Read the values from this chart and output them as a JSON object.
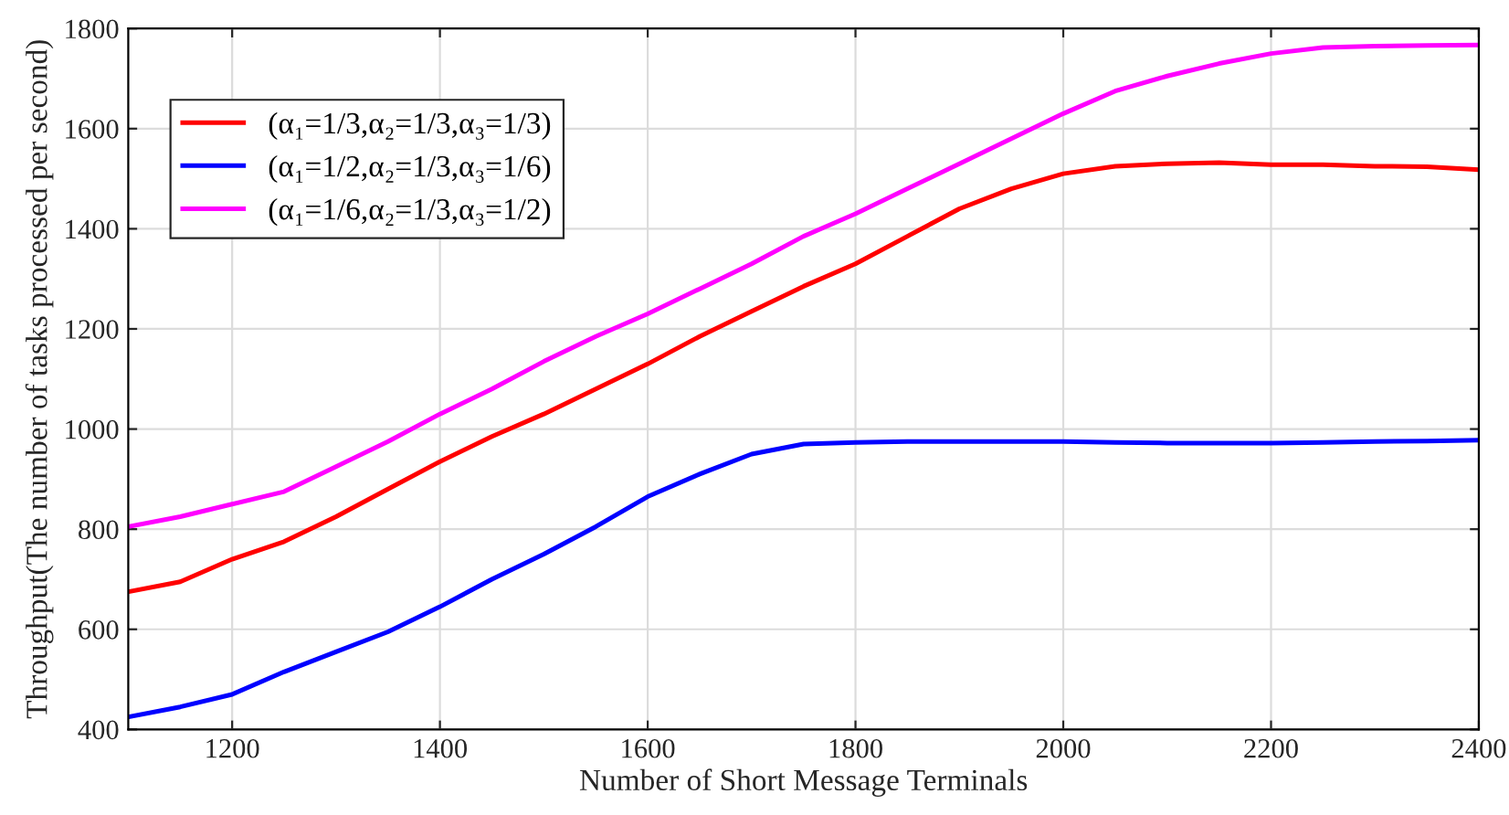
{
  "chart_data": {
    "type": "line",
    "xlabel": "Number of Short Message Terminals",
    "ylabel": "Throughput(The number of tasks processed per second)",
    "x": [
      1100,
      1150,
      1200,
      1250,
      1300,
      1350,
      1400,
      1450,
      1500,
      1550,
      1600,
      1650,
      1700,
      1750,
      1800,
      1850,
      1900,
      1950,
      2000,
      2050,
      2100,
      2150,
      2200,
      2250,
      2300,
      2350,
      2400
    ],
    "series": [
      {
        "name": "(α₁=1/3,α₂=1/3,α₃=1/3)",
        "color": "#ff0000",
        "values": [
          675,
          695,
          740,
          775,
          825,
          880,
          935,
          985,
          1030,
          1080,
          1130,
          1185,
          1235,
          1285,
          1330,
          1385,
          1440,
          1480,
          1510,
          1525,
          1530,
          1532,
          1528,
          1528,
          1525,
          1524,
          1518
        ]
      },
      {
        "name": "(α₁=1/2,α₂=1/3,α₃=1/6)",
        "color": "#0000ff",
        "values": [
          425,
          445,
          470,
          515,
          555,
          595,
          645,
          700,
          750,
          805,
          865,
          910,
          950,
          970,
          973,
          975,
          975,
          975,
          975,
          973,
          972,
          972,
          972,
          973,
          975,
          976,
          978
        ]
      },
      {
        "name": "(α₁=1/6,α₂=1/3,α₃=1/2)",
        "color": "#ff00ff",
        "values": [
          805,
          825,
          850,
          875,
          925,
          975,
          1030,
          1080,
          1135,
          1185,
          1230,
          1280,
          1330,
          1385,
          1430,
          1480,
          1530,
          1580,
          1630,
          1675,
          1705,
          1730,
          1750,
          1762,
          1765,
          1766,
          1767
        ]
      }
    ],
    "xlim": [
      1100,
      2400
    ],
    "xticks": [
      1200,
      1400,
      1600,
      1800,
      2000,
      2200,
      2400
    ],
    "ylim": [
      400,
      1800
    ],
    "yticks": [
      400,
      600,
      800,
      1000,
      1200,
      1400,
      1600,
      1800
    ],
    "grid": true,
    "legend": "top left",
    "line_style": "solid"
  }
}
